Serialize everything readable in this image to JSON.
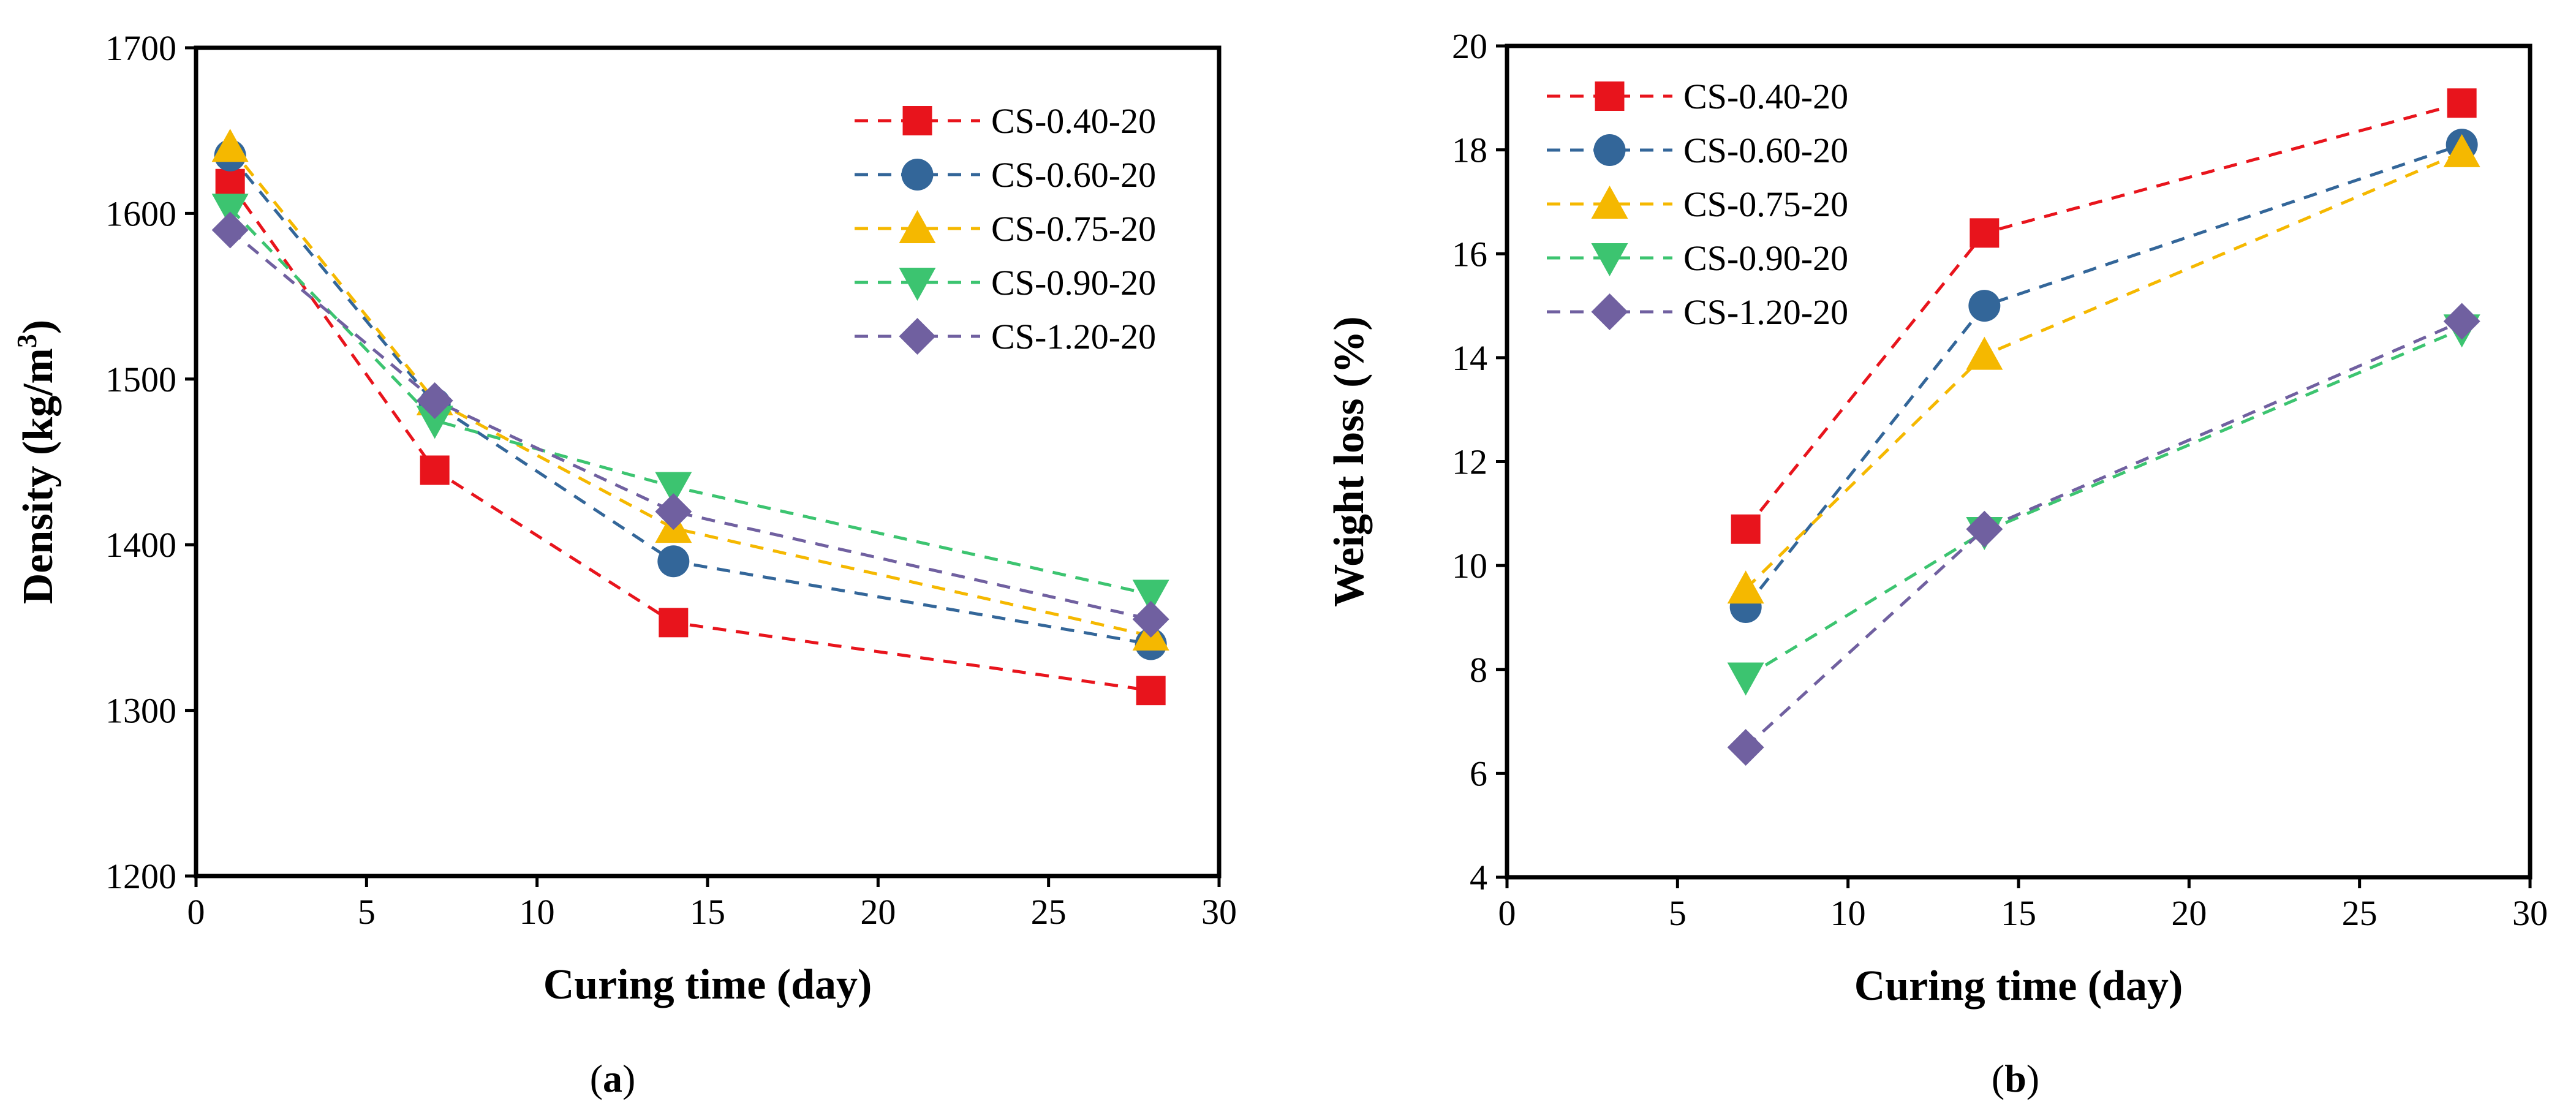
{
  "chart_data": [
    {
      "type": "line",
      "panel_label": "a",
      "xlabel": "Curing time (day)",
      "ylabel": "Density (kg/m",
      "ylabel_sup": "3",
      "ylabel_tail": ")",
      "xlim": [
        0,
        30
      ],
      "ylim": [
        1200,
        1700
      ],
      "xticks": [
        0,
        5,
        10,
        15,
        20,
        25,
        30
      ],
      "yticks": [
        1200,
        1300,
        1400,
        1500,
        1600,
        1700
      ],
      "grid": false,
      "legend_position": "top-right",
      "x": [
        1,
        7,
        14,
        28
      ],
      "series": [
        {
          "name": "CS-0.40-20",
          "color": "#e8141c",
          "marker": "square",
          "values": [
            1618,
            1445,
            1353,
            1312
          ]
        },
        {
          "name": "CS-0.60-20",
          "color": "#336699",
          "marker": "circle",
          "values": [
            1635,
            1485,
            1390,
            1340
          ]
        },
        {
          "name": "CS-0.75-20",
          "color": "#f5b800",
          "marker": "triangle-up",
          "values": [
            1640,
            1487,
            1410,
            1345
          ]
        },
        {
          "name": "CS-0.90-20",
          "color": "#3cc470",
          "marker": "triangle-down",
          "values": [
            1603,
            1475,
            1435,
            1370
          ]
        },
        {
          "name": "CS-1.20-20",
          "color": "#7060a0",
          "marker": "diamond",
          "values": [
            1590,
            1487,
            1420,
            1355
          ]
        }
      ]
    },
    {
      "type": "line",
      "panel_label": "b",
      "xlabel": "Curing time (day)",
      "ylabel": "Weight loss (%)",
      "ylabel_sup": "",
      "ylabel_tail": "",
      "xlim": [
        0,
        30
      ],
      "ylim": [
        4,
        20
      ],
      "xticks": [
        0,
        5,
        10,
        15,
        20,
        25,
        30
      ],
      "yticks": [
        4,
        6,
        8,
        10,
        12,
        14,
        16,
        18,
        20
      ],
      "grid": false,
      "legend_position": "top-left",
      "x": [
        7,
        14,
        28
      ],
      "series": [
        {
          "name": "CS-0.40-20",
          "color": "#e8141c",
          "marker": "square",
          "values": [
            10.7,
            16.4,
            18.9
          ]
        },
        {
          "name": "CS-0.60-20",
          "color": "#336699",
          "marker": "circle",
          "values": [
            9.2,
            15.0,
            18.1
          ]
        },
        {
          "name": "CS-0.75-20",
          "color": "#f5b800",
          "marker": "triangle-up",
          "values": [
            9.55,
            14.05,
            17.95
          ]
        },
        {
          "name": "CS-0.90-20",
          "color": "#3cc470",
          "marker": "triangle-down",
          "values": [
            7.85,
            10.65,
            14.55
          ]
        },
        {
          "name": "CS-1.20-20",
          "color": "#7060a0",
          "marker": "diamond",
          "values": [
            6.5,
            10.7,
            14.7
          ]
        }
      ]
    }
  ]
}
